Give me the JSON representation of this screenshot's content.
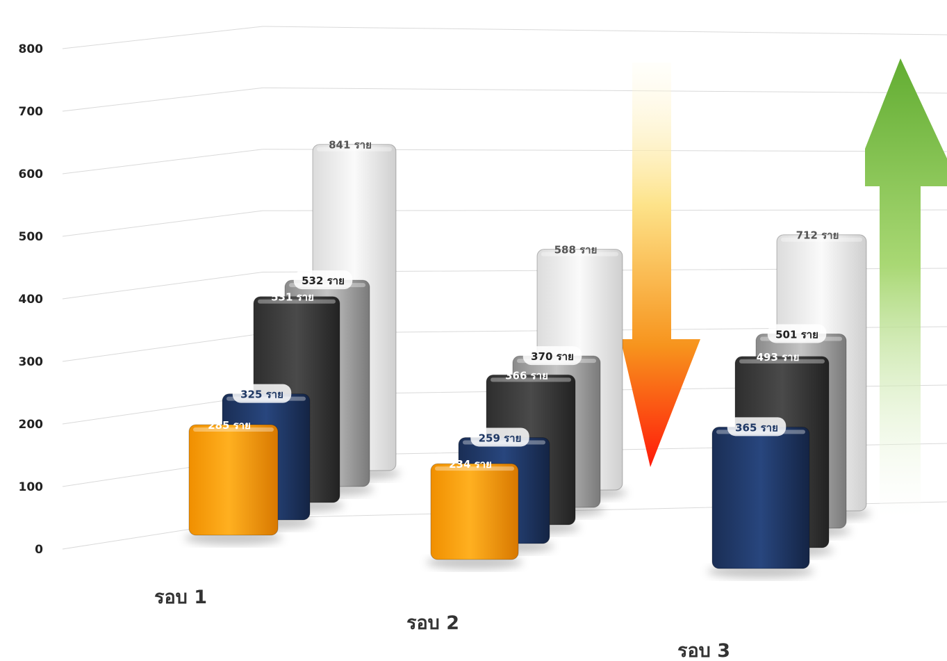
{
  "chart_data": {
    "type": "bar",
    "title": "",
    "xlabel": "",
    "ylabel": "",
    "ylim": [
      0,
      800
    ],
    "y_ticks": [
      "0",
      "100",
      "200",
      "300",
      "400",
      "500",
      "600",
      "700",
      "800"
    ],
    "categories": [
      "รอบ 1",
      "รอบ 2",
      "รอบ 3"
    ],
    "grid": true,
    "series": [
      {
        "values": [
          285,
          234,
          null
        ],
        "labels": [
          "285 ราย",
          "234 ราย",
          ""
        ],
        "color": "#f79a00"
      },
      {
        "values": [
          325,
          259,
          365
        ],
        "labels": [
          "325 ราย",
          "259 ราย",
          "365 ราย"
        ],
        "color": "#1f3864"
      },
      {
        "values": [
          531,
          366,
          493
        ],
        "labels": [
          "531 ราย",
          "366 ราย",
          "493 ราย"
        ],
        "color": "#3a3a3a"
      },
      {
        "values": [
          532,
          370,
          501
        ],
        "labels": [
          "532 ราย",
          "370 ราย",
          "501 ราย"
        ],
        "color": "#9d9d9d"
      },
      {
        "values": [
          841,
          588,
          712
        ],
        "labels": [
          "841 ราย",
          "588 ราย",
          "712 ราย"
        ],
        "color": "#eeeeee"
      }
    ],
    "annotations": [
      {
        "type": "arrow",
        "direction": "down",
        "colors": [
          "#fff6c8",
          "#f7941d",
          "#ff2010"
        ]
      },
      {
        "type": "arrow",
        "direction": "up",
        "colors": [
          "#6db33f",
          "#a8d86a",
          "#ffffff"
        ]
      }
    ]
  }
}
